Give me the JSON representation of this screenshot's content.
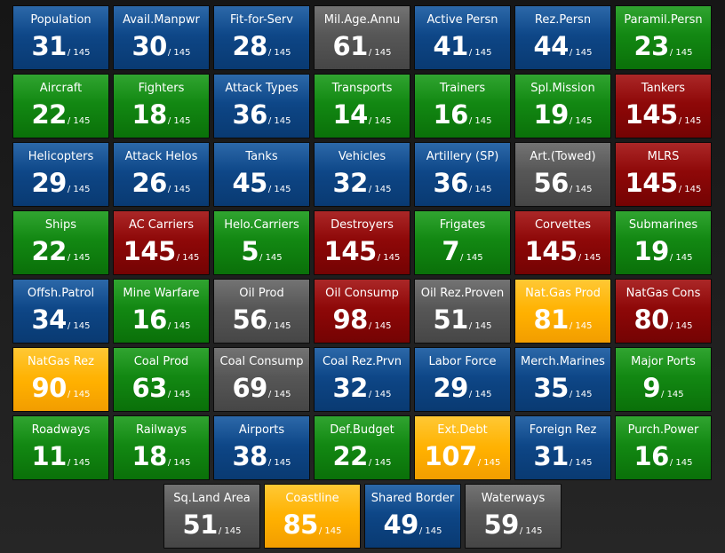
{
  "colors": {
    "blue": "#0d4483",
    "green": "#118411",
    "red": "#8a0707",
    "gray": "#545454",
    "orange": "#ffb000",
    "background": "#1e1e1e"
  },
  "tiles": [
    {
      "label": "Population",
      "rank": "31",
      "total": "/ 145",
      "color": "blue"
    },
    {
      "label": "Avail.Manpwr",
      "rank": "30",
      "total": "/ 145",
      "color": "blue"
    },
    {
      "label": "Fit-for-Serv",
      "rank": "28",
      "total": "/ 145",
      "color": "blue"
    },
    {
      "label": "Mil.Age.Annu",
      "rank": "61",
      "total": "/ 145",
      "color": "gray"
    },
    {
      "label": "Active Persn",
      "rank": "41",
      "total": "/ 145",
      "color": "blue"
    },
    {
      "label": "Rez.Persn",
      "rank": "44",
      "total": "/ 145",
      "color": "blue"
    },
    {
      "label": "Paramil.Persn",
      "rank": "23",
      "total": "/ 145",
      "color": "green"
    },
    {
      "label": "Aircraft",
      "rank": "22",
      "total": "/ 145",
      "color": "green"
    },
    {
      "label": "Fighters",
      "rank": "18",
      "total": "/ 145",
      "color": "green"
    },
    {
      "label": "Attack Types",
      "rank": "36",
      "total": "/ 145",
      "color": "blue"
    },
    {
      "label": "Transports",
      "rank": "14",
      "total": "/ 145",
      "color": "green"
    },
    {
      "label": "Trainers",
      "rank": "16",
      "total": "/ 145",
      "color": "green"
    },
    {
      "label": "Spl.Mission",
      "rank": "19",
      "total": "/ 145",
      "color": "green"
    },
    {
      "label": "Tankers",
      "rank": "145",
      "total": "/ 145",
      "color": "red"
    },
    {
      "label": "Helicopters",
      "rank": "29",
      "total": "/ 145",
      "color": "blue"
    },
    {
      "label": "Attack Helos",
      "rank": "26",
      "total": "/ 145",
      "color": "blue"
    },
    {
      "label": "Tanks",
      "rank": "45",
      "total": "/ 145",
      "color": "blue"
    },
    {
      "label": "Vehicles",
      "rank": "32",
      "total": "/ 145",
      "color": "blue"
    },
    {
      "label": "Artillery (SP)",
      "rank": "36",
      "total": "/ 145",
      "color": "blue"
    },
    {
      "label": "Art.(Towed)",
      "rank": "56",
      "total": "/ 145",
      "color": "gray"
    },
    {
      "label": "MLRS",
      "rank": "145",
      "total": "/ 145",
      "color": "red"
    },
    {
      "label": "Ships",
      "rank": "22",
      "total": "/ 145",
      "color": "green"
    },
    {
      "label": "AC Carriers",
      "rank": "145",
      "total": "/ 145",
      "color": "red"
    },
    {
      "label": "Helo.Carriers",
      "rank": "5",
      "total": "/ 145",
      "color": "green"
    },
    {
      "label": "Destroyers",
      "rank": "145",
      "total": "/ 145",
      "color": "red"
    },
    {
      "label": "Frigates",
      "rank": "7",
      "total": "/ 145",
      "color": "green"
    },
    {
      "label": "Corvettes",
      "rank": "145",
      "total": "/ 145",
      "color": "red"
    },
    {
      "label": "Submarines",
      "rank": "19",
      "total": "/ 145",
      "color": "green"
    },
    {
      "label": "Offsh.Patrol",
      "rank": "34",
      "total": "/ 145",
      "color": "blue"
    },
    {
      "label": "Mine Warfare",
      "rank": "16",
      "total": "/ 145",
      "color": "green"
    },
    {
      "label": "Oil Prod",
      "rank": "56",
      "total": "/ 145",
      "color": "gray"
    },
    {
      "label": "Oil Consump",
      "rank": "98",
      "total": "/ 145",
      "color": "red"
    },
    {
      "label": "Oil Rez.Proven",
      "rank": "51",
      "total": "/ 145",
      "color": "gray"
    },
    {
      "label": "Nat.Gas Prod",
      "rank": "81",
      "total": "/ 145",
      "color": "orange"
    },
    {
      "label": "NatGas Cons",
      "rank": "80",
      "total": "/ 145",
      "color": "red"
    },
    {
      "label": "NatGas Rez",
      "rank": "90",
      "total": "/ 145",
      "color": "orange"
    },
    {
      "label": "Coal Prod",
      "rank": "63",
      "total": "/ 145",
      "color": "green"
    },
    {
      "label": "Coal Consump",
      "rank": "69",
      "total": "/ 145",
      "color": "gray"
    },
    {
      "label": "Coal Rez.Prvn",
      "rank": "32",
      "total": "/ 145",
      "color": "blue"
    },
    {
      "label": "Labor Force",
      "rank": "29",
      "total": "/ 145",
      "color": "blue"
    },
    {
      "label": "Merch.Marines",
      "rank": "35",
      "total": "/ 145",
      "color": "blue"
    },
    {
      "label": "Major Ports",
      "rank": "9",
      "total": "/ 145",
      "color": "green"
    },
    {
      "label": "Roadways",
      "rank": "11",
      "total": "/ 145",
      "color": "green"
    },
    {
      "label": "Railways",
      "rank": "18",
      "total": "/ 145",
      "color": "green"
    },
    {
      "label": "Airports",
      "rank": "38",
      "total": "/ 145",
      "color": "blue"
    },
    {
      "label": "Def.Budget",
      "rank": "22",
      "total": "/ 145",
      "color": "green"
    },
    {
      "label": "Ext.Debt",
      "rank": "107",
      "total": "/ 145",
      "color": "orange"
    },
    {
      "label": "Foreign Rez",
      "rank": "31",
      "total": "/ 145",
      "color": "blue"
    },
    {
      "label": "Purch.Power",
      "rank": "16",
      "total": "/ 145",
      "color": "green"
    }
  ],
  "last_row": [
    {
      "label": "Sq.Land Area",
      "rank": "51",
      "total": "/ 145",
      "color": "gray"
    },
    {
      "label": "Coastline",
      "rank": "85",
      "total": "/ 145",
      "color": "orange"
    },
    {
      "label": "Shared Border",
      "rank": "49",
      "total": "/ 145",
      "color": "blue"
    },
    {
      "label": "Waterways",
      "rank": "59",
      "total": "/ 145",
      "color": "gray"
    }
  ]
}
